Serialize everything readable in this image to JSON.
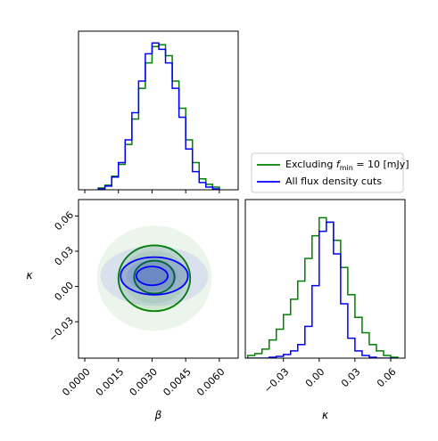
{
  "chart_data": [
    {
      "type": "histogram",
      "xlim": [
        -0.00028,
        0.00684
      ],
      "xticks": [
        0,
        0.0015,
        0.003,
        0.0045,
        0.006
      ],
      "ylim": [
        0,
        175
      ],
      "bins": [
        0.0006,
        0.0009,
        0.0012,
        0.0015,
        0.0018,
        0.0021,
        0.0024,
        0.0027,
        0.003,
        0.0033,
        0.0036,
        0.0039,
        0.0042,
        0.0045,
        0.0048,
        0.0051,
        0.0054,
        0.0057,
        0.006
      ],
      "series": [
        {
          "color": "#008000",
          "values": [
            2,
            5,
            15,
            28,
            50,
            78,
            112,
            140,
            158,
            160,
            148,
            120,
            90,
            55,
            30,
            12,
            6,
            3
          ]
        },
        {
          "color": "#0000ff",
          "values": [
            1,
            4,
            14,
            30,
            55,
            85,
            120,
            150,
            162,
            155,
            140,
            112,
            80,
            45,
            20,
            8,
            3,
            1
          ]
        }
      ]
    },
    {
      "type": "contour",
      "xlabel": "β",
      "ylabel": "κ",
      "xlim": [
        -0.00028,
        0.00684
      ],
      "xticks": [
        {
          "value": 0,
          "label": "0.0000"
        },
        0.0015,
        {
          "value": 0.003,
          "label": "0.0030"
        },
        0.0045,
        {
          "value": 0.006,
          "label": "0.0060"
        }
      ],
      "ylim": [
        -0.061,
        0.074
      ],
      "yticks": [
        {
          "value": -0.03,
          "label": "−0.03"
        },
        {
          "value": 0,
          "label": "0.00"
        },
        0.03,
        0.06
      ],
      "series": [
        {
          "name_parts": [
            "Excluding ",
            "f",
            "min",
            " = 10 [mJy]"
          ],
          "color": "#008000",
          "contours": [
            {
              "cx": 0.0031,
              "cy": 0.007,
              "rx": 0.0016,
              "ry": 0.028
            },
            {
              "cx": 0.0031,
              "cy": 0.008,
              "rx": 0.0009,
              "ry": 0.014
            }
          ]
        },
        {
          "name_parts": [
            "All flux density cuts"
          ],
          "color": "#0000ff",
          "contours": [
            {
              "cx": 0.0031,
              "cy": 0.009,
              "rx": 0.0015,
              "ry": 0.016
            },
            {
              "cx": 0.003,
              "cy": 0.009,
              "rx": 0.0007,
              "ry": 0.008
            }
          ]
        }
      ]
    },
    {
      "type": "histogram",
      "xlabel": "κ",
      "xlim": [
        -0.062,
        0.072
      ],
      "xticks": [
        {
          "value": -0.03,
          "label": "−0.03"
        },
        {
          "value": 0,
          "label": "0.00"
        },
        0.03,
        0.06
      ],
      "ylim": [
        0,
        175
      ],
      "bins": [
        -0.06,
        -0.054,
        -0.048,
        -0.042,
        -0.036,
        -0.03,
        -0.024,
        -0.018,
        -0.012,
        -0.006,
        0,
        0.006,
        0.012,
        0.018,
        0.024,
        0.03,
        0.036,
        0.042,
        0.048,
        0.054,
        0.06,
        0.066
      ],
      "series": [
        {
          "color": "#008000",
          "values": [
            3,
            5,
            10,
            20,
            32,
            48,
            65,
            85,
            110,
            135,
            155,
            150,
            130,
            100,
            70,
            45,
            28,
            15,
            8,
            3,
            1
          ]
        },
        {
          "color": "#0000ff",
          "values": [
            0,
            0,
            0,
            1,
            2,
            4,
            8,
            15,
            35,
            80,
            140,
            150,
            115,
            60,
            22,
            8,
            3,
            1,
            0,
            0,
            0
          ]
        }
      ]
    }
  ]
}
